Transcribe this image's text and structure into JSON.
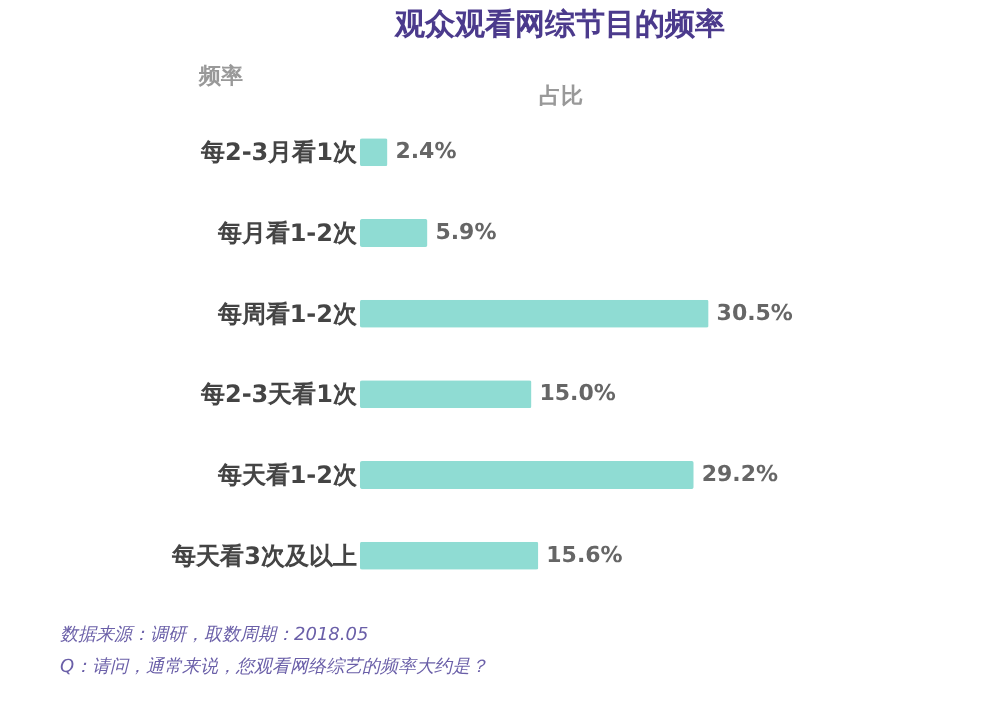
{
  "chart_data": {
    "type": "bar",
    "orientation": "horizontal",
    "title": "观众观看网综节目的频率",
    "ylabel": "频率",
    "xlabel": "占比",
    "categories": [
      "每2-3月看1次",
      "每月看1-2次",
      "每周看1-2次",
      "每2-3天看1次",
      "每天看1-2次",
      "每天看3次及以上"
    ],
    "values": [
      2.4,
      5.9,
      30.5,
      15.0,
      29.2,
      15.6
    ],
    "color": "#8fdcd3",
    "value_labels": [
      "2.4%",
      "5.9%",
      "30.5%",
      "15.0%",
      "29.2%",
      "15.6%"
    ],
    "tick_labels": "y",
    "grid": false,
    "legend": false,
    "annotations": [
      "数据来源：调研，取数周期：2018.05",
      "Q：请问，通常来说，您观看网络综艺的频率大约是？"
    ]
  }
}
